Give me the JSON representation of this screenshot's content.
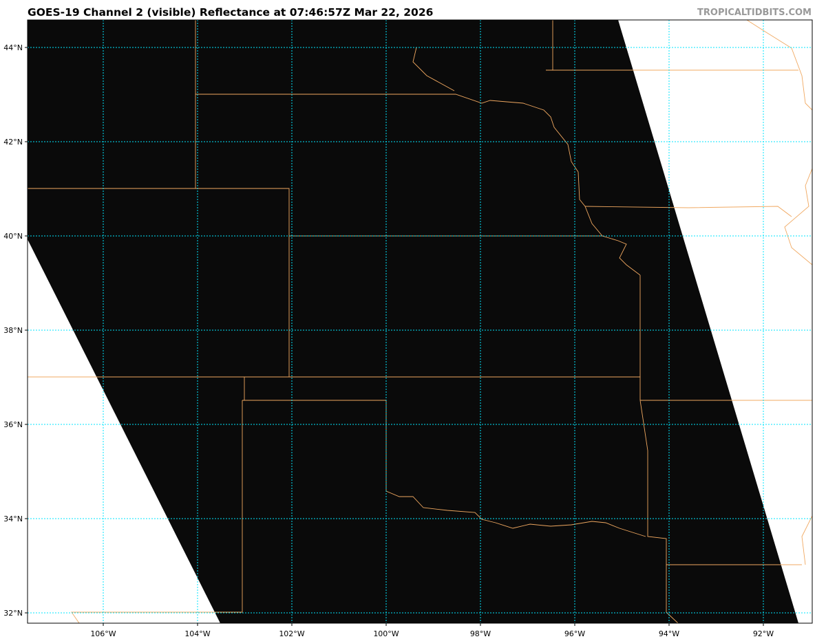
{
  "title": "GOES-19 Channel 2 (visible) Reflectance at 07:46:57Z Mar 22, 2026",
  "watermark": "TROPICALTIDBITS.COM",
  "map": {
    "projection": "lat-lon",
    "extent": {
      "lon": [
        -107.6,
        -91.0
      ],
      "lat": [
        31.8,
        44.6
      ]
    },
    "background_color": "#ffffff",
    "swath_color": "#0a0a0a",
    "border_color": "#f0a860",
    "grid_color": "#00e5ff",
    "lat_ticks": [
      {
        "value": 44,
        "label": "44°N"
      },
      {
        "value": 42,
        "label": "42°N"
      },
      {
        "value": 40,
        "label": "40°N"
      },
      {
        "value": 38,
        "label": "38°N"
      },
      {
        "value": 36,
        "label": "36°N"
      },
      {
        "value": 34,
        "label": "34°N"
      },
      {
        "value": 32,
        "label": "32°N"
      }
    ],
    "lon_ticks": [
      {
        "value": -106,
        "label": "106°W"
      },
      {
        "value": -104,
        "label": "104°W"
      },
      {
        "value": -102,
        "label": "102°W"
      },
      {
        "value": -100,
        "label": "100°W"
      },
      {
        "value": -98,
        "label": "98°W"
      },
      {
        "value": -96,
        "label": "96°W"
      },
      {
        "value": -94,
        "label": "94°W"
      },
      {
        "value": -92,
        "label": "92°W"
      }
    ]
  }
}
